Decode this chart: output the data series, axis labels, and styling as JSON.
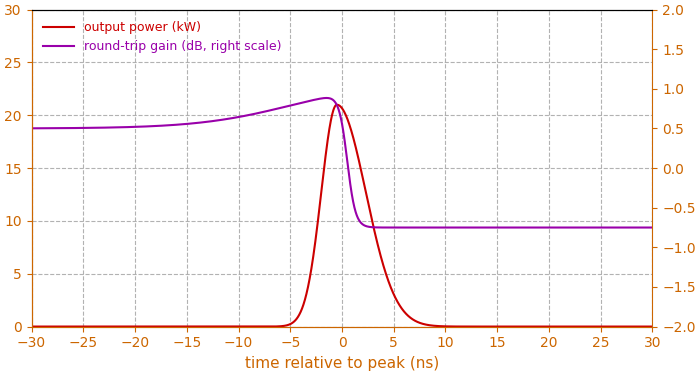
{
  "xlim": [
    -30,
    30
  ],
  "ylim_left": [
    0,
    30
  ],
  "ylim_right": [
    -2,
    2
  ],
  "xlabel": "time relative to peak (ns)",
  "legend": [
    {
      "label": "output power (kW)",
      "color": "#cc0000"
    },
    {
      "label": "round-trip gain (dB, right scale)",
      "color": "#9900aa"
    }
  ],
  "grid_color": "#aaaaaa",
  "grid_style": "--",
  "background_color": "#ffffff",
  "power_color": "#cc0000",
  "gain_color": "#9900aa",
  "left_tick_color": "#cc6600",
  "right_tick_color": "#cc6600",
  "xticks": [
    -30,
    -25,
    -20,
    -15,
    -10,
    -5,
    0,
    5,
    10,
    15,
    20,
    25,
    30
  ],
  "yticks_left": [
    0,
    5,
    10,
    15,
    20,
    25,
    30
  ],
  "yticks_right": [
    -2,
    -1.5,
    -1,
    -0.5,
    0,
    0.5,
    1,
    1.5,
    2
  ]
}
